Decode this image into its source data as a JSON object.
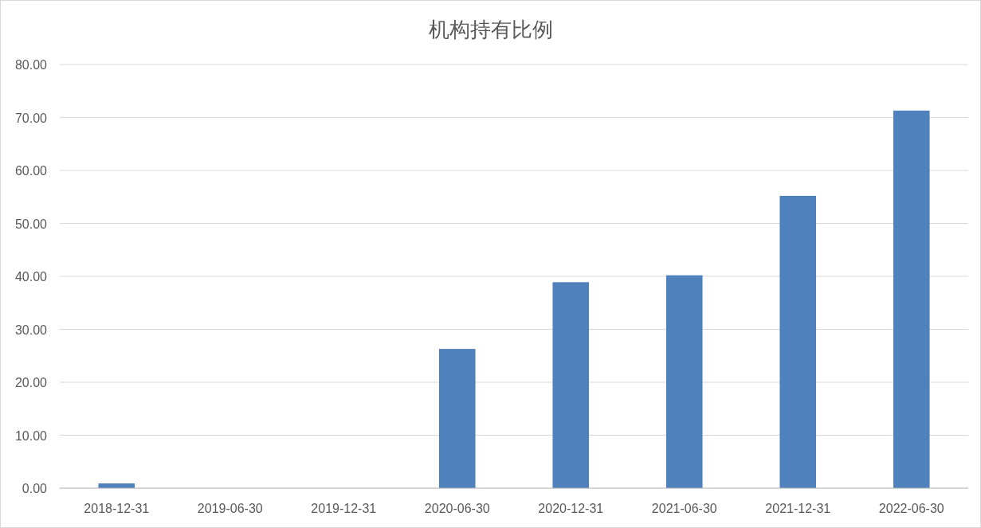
{
  "chart_data": {
    "type": "bar",
    "title": "机构持有比例",
    "categories": [
      "2018-12-31",
      "2019-06-30",
      "2019-12-31",
      "2020-06-30",
      "2020-12-31",
      "2021-06-30",
      "2021-12-31",
      "2022-06-30"
    ],
    "values": [
      0.9,
      0,
      0,
      26.3,
      38.9,
      40.2,
      55.2,
      71.3
    ],
    "color": "#4f81bd",
    "ylim": [
      0,
      80
    ],
    "yticks": [
      {
        "value": 0,
        "label": "0.00"
      },
      {
        "value": 10,
        "label": "10.00"
      },
      {
        "value": 20,
        "label": "20.00"
      },
      {
        "value": 30,
        "label": "30.00"
      },
      {
        "value": 40,
        "label": "40.00"
      },
      {
        "value": 50,
        "label": "50.00"
      },
      {
        "value": 60,
        "label": "60.00"
      },
      {
        "value": 70,
        "label": "70.00"
      },
      {
        "value": 80,
        "label": "80.00"
      }
    ],
    "grid": "y"
  }
}
